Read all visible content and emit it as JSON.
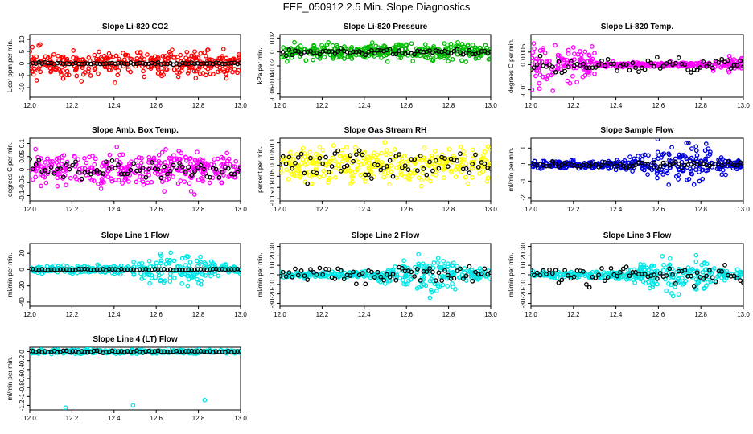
{
  "figure_title": "FEF_050912  2.5 Min. Slope Diagnostics",
  "chart_data": [
    {
      "type": "scatter",
      "title": "Slope Li-820 CO2",
      "ylabel": "Licor ppm per min.",
      "xlim": [
        12.0,
        13.0
      ],
      "ylim": [
        -14,
        12
      ],
      "xticks": [
        "12.0",
        "12.2",
        "12.4",
        "12.6",
        "12.8",
        "13.0"
      ],
      "yticks": [
        -10,
        -5,
        0,
        5,
        10
      ],
      "series": [
        {
          "color": "#ff0000",
          "spread": 4,
          "seed": 11
        },
        {
          "color": "#000000",
          "spread": 0.3,
          "seed": 12,
          "sparse": true
        }
      ]
    },
    {
      "type": "scatter",
      "title": "Slope Li-820 Pressure",
      "ylabel": "kPa per min.",
      "xlim": [
        12.0,
        13.0
      ],
      "ylim": [
        -0.065,
        0.025
      ],
      "xticks": [
        "12.0",
        "12.2",
        "12.4",
        "12.6",
        "12.8",
        "13.0"
      ],
      "yticks": [
        0.02,
        0.0,
        -0.02,
        -0.04,
        -0.06
      ],
      "series": [
        {
          "color": "#00bb00",
          "spread": 0.008,
          "seed": 21
        },
        {
          "color": "#000000",
          "spread": 0.003,
          "seed": 22,
          "sparse": true
        }
      ]
    },
    {
      "type": "scatter",
      "title": "Slope Li-820 Temp.",
      "ylabel": "degrees C per min.",
      "xlim": [
        12.0,
        13.0
      ],
      "ylim": [
        -0.013,
        0.012
      ],
      "xticks": [
        "12.0",
        "12.2",
        "12.4",
        "12.6",
        "12.8",
        "13.0"
      ],
      "yticks": [
        0.005,
        0.0,
        -0.01
      ],
      "series": [
        {
          "color": "#ff00ff",
          "spread": 0.004,
          "seed": 31,
          "funnel": true
        },
        {
          "color": "#000000",
          "spread": 0.002,
          "seed": 32,
          "sparse": true
        }
      ]
    },
    {
      "type": "scatter",
      "title": "Slope Amb. Box Temp.",
      "ylabel": "degrees C per min.",
      "xlim": [
        12.0,
        13.0
      ],
      "ylim": [
        -0.12,
        0.12
      ],
      "xticks": [
        "12.0",
        "12.2",
        "12.4",
        "12.6",
        "12.8",
        "13.0"
      ],
      "yticks": [
        0.1,
        0.05,
        0.0,
        -0.05,
        -0.1
      ],
      "series": [
        {
          "color": "#ff00ff",
          "spread": 0.045,
          "seed": 41
        },
        {
          "color": "#000000",
          "spread": 0.03,
          "seed": 42,
          "sparse": true
        }
      ]
    },
    {
      "type": "scatter",
      "title": "Slope Gas Stream RH",
      "ylabel": "percent per min.",
      "xlim": [
        12.0,
        13.0
      ],
      "ylim": [
        -0.16,
        0.12
      ],
      "xticks": [
        "12.0",
        "12.2",
        "12.4",
        "12.6",
        "12.8",
        "13.0"
      ],
      "yticks": [
        0.1,
        0.05,
        0.0,
        -0.05,
        -0.1,
        -0.15
      ],
      "series": [
        {
          "color": "#ffff00",
          "spread": 0.05,
          "seed": 51
        },
        {
          "color": "#000000",
          "spread": 0.05,
          "seed": 52,
          "sparse": true
        }
      ]
    },
    {
      "type": "scatter",
      "title": "Slope Sample Flow",
      "ylabel": "ml/min per min.",
      "xlim": [
        12.0,
        13.0
      ],
      "ylim": [
        -2.2,
        1.6
      ],
      "xticks": [
        "12.0",
        "12.2",
        "12.4",
        "12.6",
        "12.8",
        "13.0"
      ],
      "yticks": [
        1,
        0,
        -1,
        -2
      ],
      "series": [
        {
          "color": "#0000dd",
          "spread": 0.55,
          "seed": 61,
          "bulge": true
        },
        {
          "color": "#000000",
          "spread": 0.12,
          "seed": 62,
          "sparse": true
        }
      ]
    },
    {
      "type": "scatter",
      "title": "Slope Line 1 Flow",
      "ylabel": "ml/min per min.",
      "xlim": [
        12.0,
        13.0
      ],
      "ylim": [
        -45,
        32
      ],
      "xticks": [
        "12.0",
        "12.2",
        "12.4",
        "12.6",
        "12.8",
        "13.0"
      ],
      "yticks": [
        20,
        0,
        -20,
        -40
      ],
      "series": [
        {
          "color": "#00e5e5",
          "spread": 10,
          "seed": 71,
          "bulge": true
        },
        {
          "color": "#000000",
          "spread": 0.5,
          "seed": 72,
          "sparse": true
        }
      ]
    },
    {
      "type": "scatter",
      "title": "Slope Line 2 Flow",
      "ylabel": "ml/min per min.",
      "xlim": [
        12.0,
        13.0
      ],
      "ylim": [
        -33,
        33
      ],
      "xticks": [
        "12.0",
        "12.2",
        "12.4",
        "12.6",
        "12.8",
        "13.0"
      ],
      "yticks": [
        30,
        20,
        10,
        0,
        -10,
        -20,
        -30
      ],
      "series": [
        {
          "color": "#00e5e5",
          "spread": 8,
          "seed": 81,
          "bulge": true
        },
        {
          "color": "#000000",
          "spread": 6,
          "seed": 82,
          "sparse": true
        }
      ]
    },
    {
      "type": "scatter",
      "title": "Slope Line 3 Flow",
      "ylabel": "ml/min per min.",
      "xlim": [
        12.0,
        13.0
      ],
      "ylim": [
        -33,
        33
      ],
      "xticks": [
        "12.0",
        "12.2",
        "12.4",
        "12.6",
        "12.8",
        "13.0"
      ],
      "yticks": [
        30,
        20,
        10,
        0,
        -10,
        -20,
        -30
      ],
      "series": [
        {
          "color": "#00e5e5",
          "spread": 8,
          "seed": 91,
          "bulge": true
        },
        {
          "color": "#000000",
          "spread": 6,
          "seed": 92,
          "sparse": true
        }
      ]
    },
    {
      "type": "scatter",
      "title": "Slope Line 4 (LT) Flow",
      "ylabel": "ml/min per min.",
      "xlim": [
        12.0,
        13.0
      ],
      "ylim": [
        -1.3,
        0.1
      ],
      "xticks": [
        "12.0",
        "12.2",
        "12.4",
        "12.6",
        "12.8",
        "13.0"
      ],
      "yticks": [
        0.0,
        -0.2,
        -0.4,
        -0.6,
        -0.8,
        -1.0,
        -1.2
      ],
      "series": [
        {
          "color": "#00e5e5",
          "spread": 0.03,
          "seed": 101
        },
        {
          "color": "#000000",
          "spread": 0.02,
          "seed": 102,
          "sparse": true
        }
      ],
      "outliers": [
        [
          12.17,
          -1.25
        ],
        [
          12.49,
          -1.2
        ],
        [
          12.83,
          -1.08
        ]
      ]
    }
  ]
}
